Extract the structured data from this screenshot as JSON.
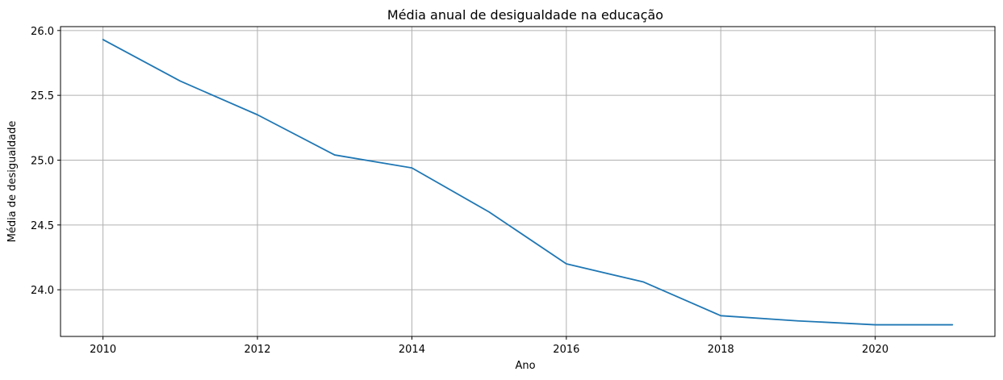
{
  "chart_data": {
    "type": "line",
    "title": "Média anual de desigualdade na educação",
    "xlabel": "Ano",
    "ylabel": "Média de desigualdade",
    "x": [
      2010,
      2011,
      2012,
      2013,
      2014,
      2015,
      2016,
      2017,
      2018,
      2019,
      2020,
      2021
    ],
    "series": [
      {
        "values": [
          25.93,
          25.61,
          25.35,
          25.04,
          24.94,
          24.6,
          24.2,
          24.06,
          23.8,
          23.76,
          23.73,
          23.73
        ]
      }
    ],
    "xticks": [
      2010,
      2012,
      2014,
      2016,
      2018,
      2020
    ],
    "xtick_labels": [
      "2010",
      "2012",
      "2014",
      "2016",
      "2018",
      "2020"
    ],
    "yticks": [
      24.0,
      24.5,
      25.0,
      25.5,
      26.0
    ],
    "ytick_labels": [
      "24.0",
      "24.5",
      "25.0",
      "25.5",
      "26.0"
    ],
    "xlim": [
      2009.45,
      2021.55
    ],
    "ylim": [
      23.64,
      26.03
    ],
    "grid": true,
    "line_color": "#1f77b4",
    "grid_color": "#b0b0b0"
  }
}
